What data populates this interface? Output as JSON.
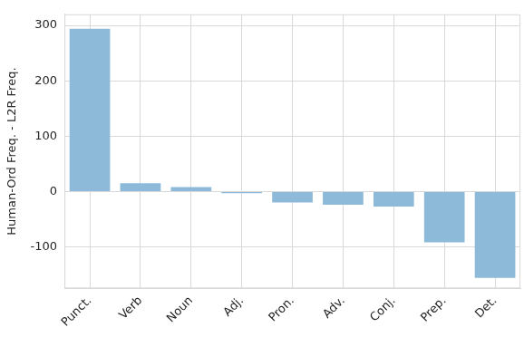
{
  "chart_data": {
    "type": "bar",
    "y_label": "Human-Ord Freq. - L2R Freq.",
    "categories": [
      "Punct.",
      "Verb",
      "Noun",
      "Adj.",
      "Pron.",
      "Adv.",
      "Conj.",
      "Prep.",
      "Det."
    ],
    "values": [
      294,
      15,
      8,
      -3,
      -20,
      -24,
      -27,
      -92,
      -156
    ],
    "color": "#8ebad9",
    "ylim": [
      -175,
      320
    ],
    "yticks": [
      -100,
      0,
      100,
      200,
      300
    ],
    "grid": true
  }
}
